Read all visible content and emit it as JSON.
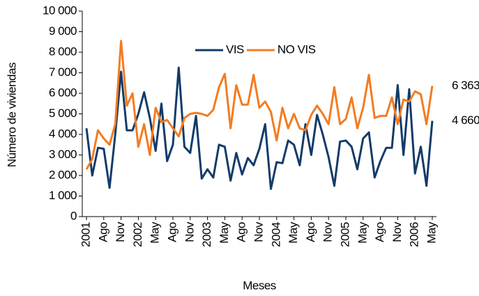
{
  "chart_data": {
    "type": "line",
    "y_label": "Número de viviendas",
    "x_label": "Meses",
    "categories": [
      "2001",
      null,
      null,
      "Ago",
      null,
      null,
      "Nov",
      null,
      null,
      "2002",
      null,
      null,
      "May",
      null,
      null,
      "Ago",
      null,
      null,
      "Nov",
      null,
      null,
      "2003",
      null,
      null,
      "May",
      null,
      null,
      "Ago",
      null,
      null,
      "Nov",
      null,
      null,
      "2004",
      null,
      null,
      "May",
      null,
      null,
      "Ago",
      null,
      null,
      "Nov",
      null,
      null,
      "2005",
      null,
      null,
      "May",
      null,
      null,
      "Ago",
      null,
      null,
      "Nov",
      null,
      null,
      "2006",
      null,
      null,
      "May"
    ],
    "series": [
      {
        "name": "VIS",
        "color": "#123b69",
        "end_label": "4 660",
        "values": [
          4300,
          2000,
          3350,
          3300,
          1400,
          4000,
          7050,
          4200,
          4200,
          5000,
          6050,
          4800,
          3200,
          5500,
          2700,
          3500,
          7250,
          3400,
          3100,
          4900,
          1850,
          2300,
          1900,
          3500,
          3400,
          1750,
          3100,
          2050,
          2850,
          2500,
          3300,
          4500,
          1350,
          2650,
          2600,
          3700,
          3500,
          2500,
          4500,
          3000,
          4950,
          4000,
          2900,
          1500,
          3650,
          3700,
          3400,
          2300,
          3800,
          4100,
          1900,
          2700,
          3350,
          3350,
          6400,
          3000,
          6200,
          2100,
          3400,
          1500,
          4660
        ]
      },
      {
        "name": "NO VIS",
        "color": "#f47b20",
        "end_label": "6 363",
        "values": [
          2300,
          2800,
          4200,
          3800,
          3500,
          4500,
          8550,
          5400,
          6000,
          3400,
          4500,
          3000,
          5300,
          4600,
          4700,
          4300,
          3900,
          4800,
          5000,
          5050,
          5000,
          4900,
          5200,
          6300,
          6950,
          4300,
          6400,
          5450,
          5450,
          6900,
          5300,
          5600,
          5100,
          3700,
          5300,
          4300,
          5000,
          4300,
          4200,
          4950,
          5400,
          5000,
          4500,
          6300,
          4500,
          4750,
          5800,
          4300,
          5300,
          6900,
          4800,
          4900,
          4900,
          5800,
          4500,
          5700,
          5600,
          6100,
          5950,
          4500,
          6363
        ]
      }
    ],
    "ylim": [
      0,
      10000
    ],
    "yticks": [
      0,
      {
        "value": 1000,
        "label": "1 000"
      },
      {
        "value": 2000,
        "label": "2 000"
      },
      {
        "value": 3000,
        "label": "3 000"
      },
      {
        "value": 4000,
        "label": "4 000"
      },
      {
        "value": 5000,
        "label": "5 000"
      },
      {
        "value": 6000,
        "label": "6 000"
      },
      {
        "value": 7000,
        "label": "7 000"
      },
      {
        "value": 8000,
        "label": "8 000"
      },
      {
        "value": 9000,
        "label": "9 000"
      },
      {
        "value": 10000,
        "label": "10 000"
      }
    ],
    "grid": false,
    "legend": "upper center"
  }
}
